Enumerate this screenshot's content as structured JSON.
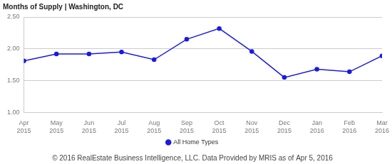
{
  "chart_data": {
    "type": "line",
    "title": "Months of Supply | Washington, DC",
    "annotations": [
      "© 2016 RealEstate Business Intelligence, LLC. Data Provided by MRIS as of Apr 5, 2016"
    ],
    "categories": [
      "Apr 2015",
      "May 2015",
      "Jun 2015",
      "Jul 2015",
      "Aug 2015",
      "Sep 2015",
      "Oct 2015",
      "Nov 2015",
      "Dec 2015",
      "Jan 2016",
      "Feb 2016",
      "Mar 2016"
    ],
    "series": [
      {
        "name": "All Home Types",
        "color": "#1a1ae0",
        "marker": "circle",
        "values": [
          1.81,
          1.92,
          1.92,
          1.95,
          1.83,
          2.15,
          2.32,
          1.96,
          1.55,
          1.68,
          1.64,
          1.89
        ]
      }
    ],
    "ylim": [
      1,
      2.5
    ],
    "yticks": [
      {
        "value": 1,
        "label": "1.00"
      },
      {
        "value": 1.5,
        "label": "1.50"
      },
      {
        "value": 2,
        "label": "2.00"
      },
      {
        "value": 2.5,
        "label": "2.50"
      }
    ],
    "grid": true,
    "legend": "bottom"
  }
}
